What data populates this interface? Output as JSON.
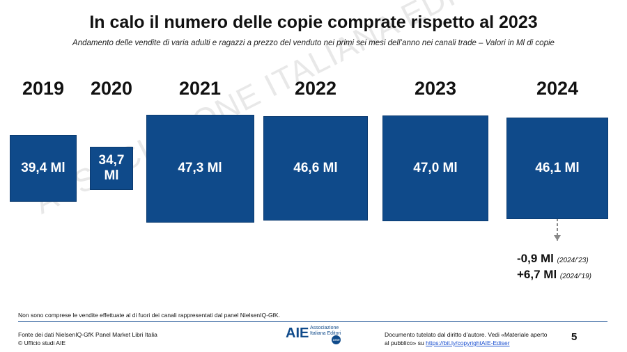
{
  "chart_data": {
    "type": "square",
    "title": "In calo il numero delle copie comprate rispetto al 2023",
    "subtitle": "Andamento delle vendite di varia adulti e ragazzi a prezzo del venduto nei primi sei mesi dell’anno nei canali trade – Valori in Ml di copie",
    "categories": [
      "2019",
      "2020",
      "2021",
      "2022",
      "2023",
      "2024"
    ],
    "values": [
      39.4,
      34.7,
      47.3,
      46.6,
      47.0,
      46.1
    ],
    "value_labels": [
      "39,4 Ml",
      "34,7 Ml",
      "47,3 Ml",
      "46,6 Ml",
      "47,0 Ml",
      "46,1 Ml"
    ],
    "color": "#0f4a8a",
    "annotations": [
      {
        "text": "-0,9 Ml",
        "note": "(2024/’23)"
      },
      {
        "text": "+6,7 Ml",
        "note": "(2024/’19)"
      }
    ]
  },
  "watermark": "ASSOCIAZIONE ITALIANA EDITORI",
  "footnote": "Non sono comprese le vendite effettuate al di fuori dei canali rappresentati dal panel NielsenIQ-GfK.",
  "footer": {
    "source": "Fonte dei dati NielsenIQ-GfK Panel Market Libri Italia",
    "office": "© Ufficio studi AIE",
    "logo": "AIE",
    "logo_text": "Associazione Italiana Editori",
    "logo_year": "1869",
    "copyright": "Documento tutelato dal diritto d’autore. Vedi «Materiale aperto al pubblico» su",
    "link": "https://bit.ly/copyrightAIE-Ediser",
    "page": "5"
  }
}
